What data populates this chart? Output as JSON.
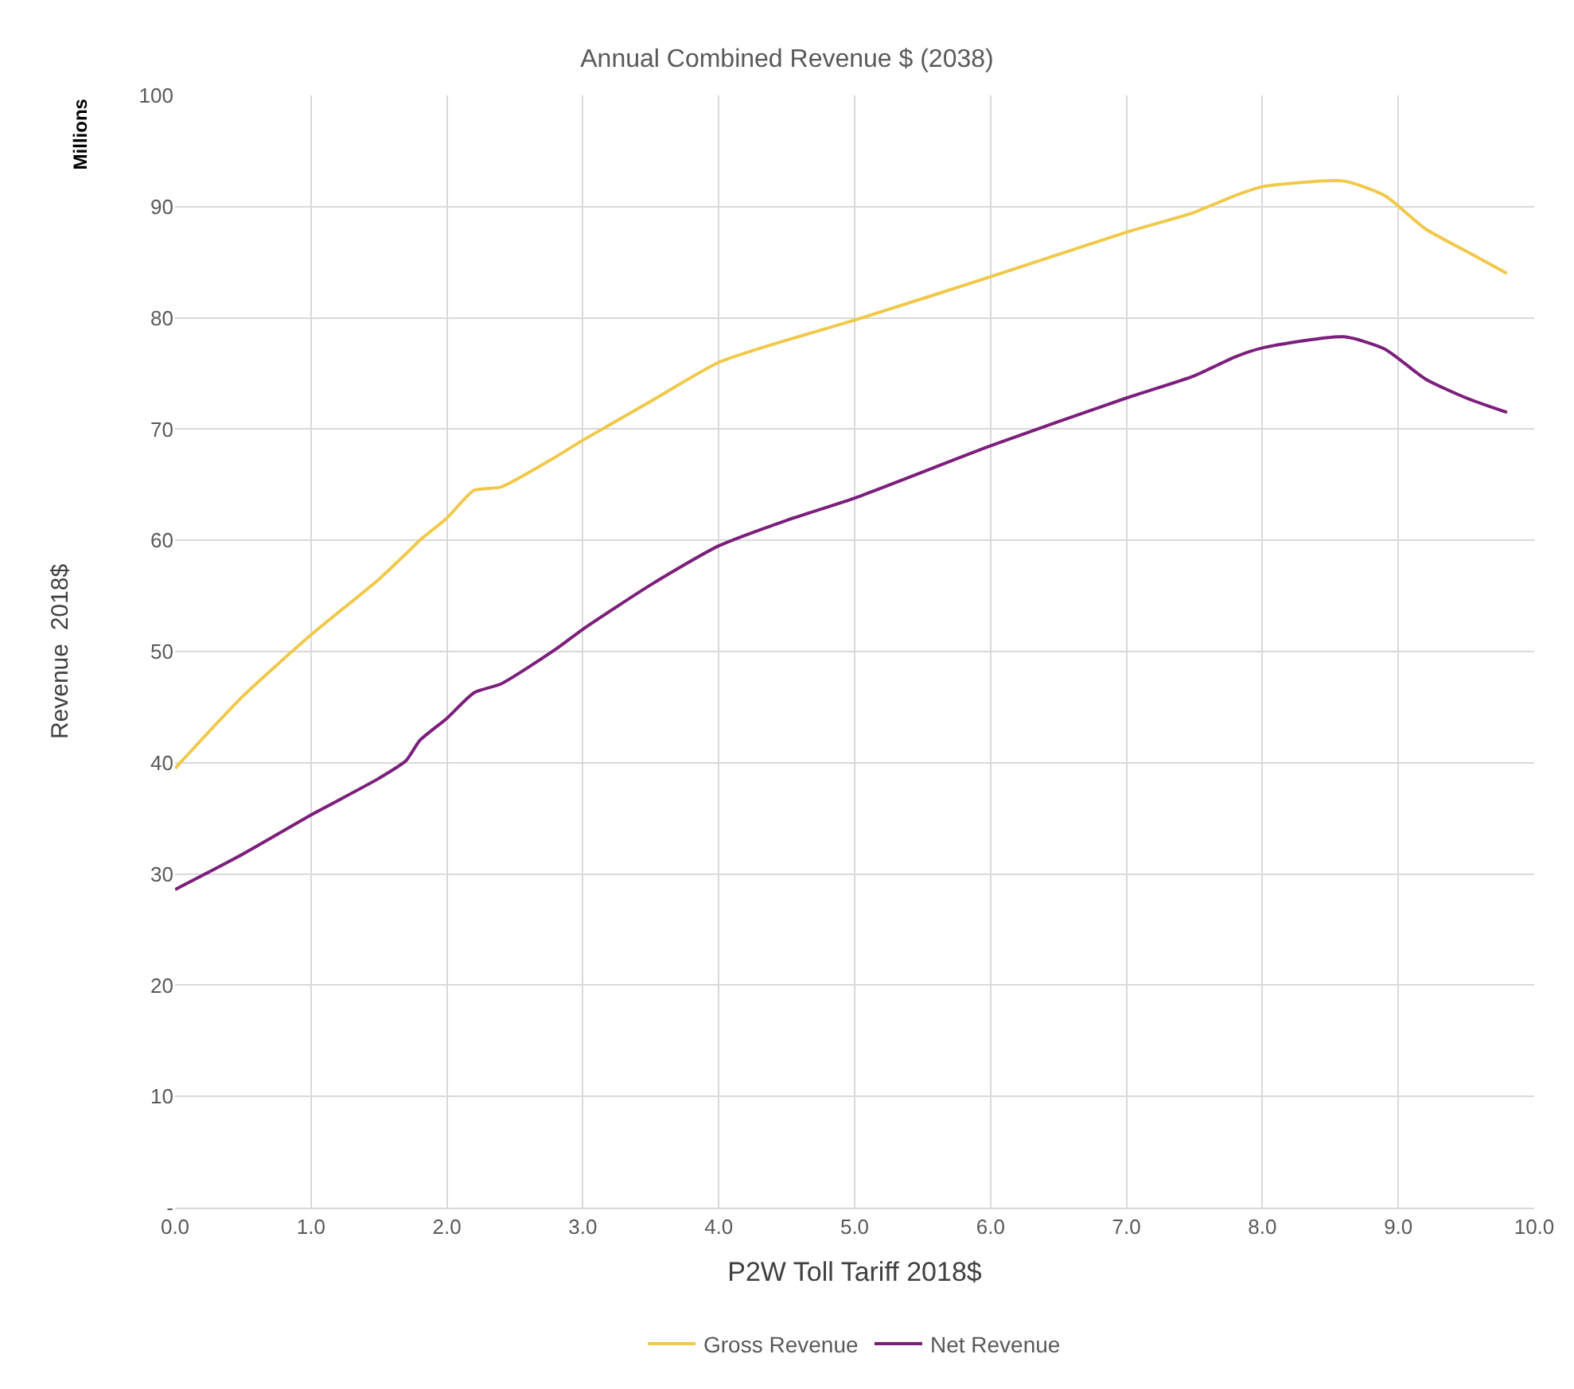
{
  "chart_data": {
    "type": "line",
    "title": "Annual Combined Revenue $ (2038)",
    "xlabel": "P2W Toll Tariff 2018$",
    "ylabel": "Revenue  2018$",
    "annotations": [
      "Millions"
    ],
    "x": [
      0,
      0.5,
      1,
      1.5,
      1.7,
      1.8,
      2,
      2.2,
      2.4,
      2.8,
      3,
      3.5,
      4,
      4.5,
      5,
      6,
      7,
      7.5,
      7.8,
      8,
      8.6,
      8.9,
      9.2,
      9.5,
      9.8
    ],
    "series": [
      {
        "name": "Gross Revenue",
        "color": "#f0c94a",
        "values": [
          39.5,
          46,
          51.5,
          56.5,
          58.8,
          60,
          62,
          64.5,
          64.8,
          67.5,
          69,
          72.5,
          76,
          78,
          79.8,
          83.7,
          87.7,
          89.5,
          91,
          91.8,
          92.3,
          91,
          88,
          86,
          84
        ]
      },
      {
        "name": "Net Revenue",
        "color": "#7b1f7b",
        "values": [
          28.6,
          31.8,
          35.3,
          38.6,
          40.2,
          42,
          44,
          46.3,
          47.1,
          50.2,
          52,
          56,
          59.5,
          61.8,
          63.8,
          68.5,
          72.8,
          74.8,
          76.5,
          77.3,
          78.3,
          77.2,
          74.5,
          72.8,
          71.5
        ]
      }
    ],
    "xlim": [
      0,
      10
    ],
    "xticks": [
      {
        "value": 0,
        "label": "0.0"
      },
      {
        "value": 1,
        "label": "1.0"
      },
      {
        "value": 2,
        "label": "2.0"
      },
      {
        "value": 3,
        "label": "3.0"
      },
      {
        "value": 4,
        "label": "4.0"
      },
      {
        "value": 5,
        "label": "5.0"
      },
      {
        "value": 6,
        "label": "6.0"
      },
      {
        "value": 7,
        "label": "7.0"
      },
      {
        "value": 8,
        "label": "8.0"
      },
      {
        "value": 9,
        "label": "9.0"
      },
      {
        "value": 10,
        "label": "10.0"
      }
    ],
    "ylim": [
      0,
      100
    ],
    "yticks": [
      {
        "value": 0,
        "label": "-"
      },
      10,
      20,
      30,
      40,
      50,
      60,
      70,
      80,
      90,
      100
    ],
    "grid": true,
    "legend": "bottom",
    "marker": "none",
    "line_style": "solid"
  }
}
